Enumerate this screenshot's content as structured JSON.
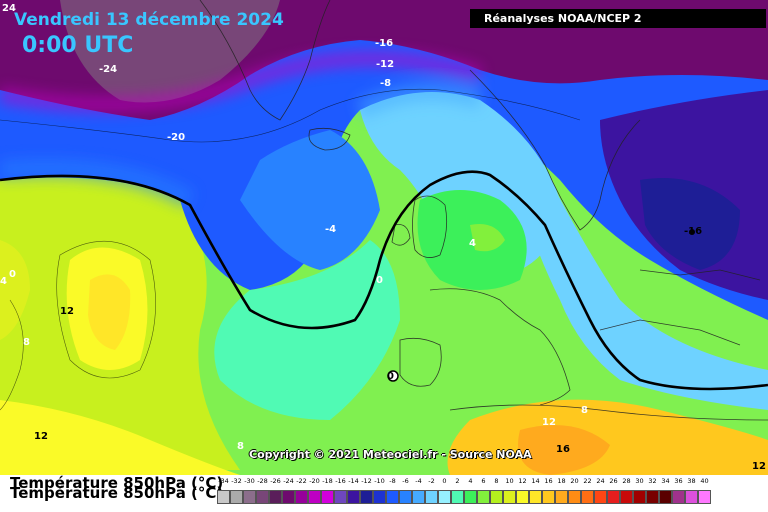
{
  "title": {
    "date": "Vendredi 13 décembre 2024",
    "time": "0:00 UTC"
  },
  "source_label": "Réanalyses NOAA/NCEP 2",
  "copyright": "Copyright © 2021 Meteociel.fr - Source NOAA",
  "variable_label": "Température 850hPa (°C)",
  "isotherm_labels": [
    {
      "text": "24",
      "color": "light"
    },
    {
      "text": "-24",
      "color": "light"
    },
    {
      "text": "-16",
      "color": "light"
    },
    {
      "text": "-12",
      "color": "light"
    },
    {
      "text": "-8",
      "color": "light"
    },
    {
      "text": "-20",
      "color": "light"
    },
    {
      "text": "-16",
      "color": "dark"
    },
    {
      "text": "-4",
      "color": "light"
    },
    {
      "text": "4",
      "color": "light"
    },
    {
      "text": "0",
      "color": "light"
    },
    {
      "text": "0",
      "color": "light"
    },
    {
      "text": "4",
      "color": "light"
    },
    {
      "text": "12",
      "color": "dark"
    },
    {
      "text": "8",
      "color": "light"
    },
    {
      "text": "12",
      "color": "dark"
    },
    {
      "text": "8",
      "color": "light"
    },
    {
      "text": "0",
      "color": "dark"
    },
    {
      "text": "8",
      "color": "light"
    },
    {
      "text": "12",
      "color": "light"
    },
    {
      "text": "16",
      "color": "dark"
    },
    {
      "text": "12",
      "color": "dark"
    }
  ],
  "legend": {
    "values": [
      "-34",
      "-32",
      "-30",
      "-28",
      "-26",
      "-24",
      "-22",
      "-20",
      "-18",
      "-16",
      "-14",
      "-12",
      "-10",
      "-8",
      "-6",
      "-4",
      "-2",
      "0",
      "2",
      "4",
      "6",
      "8",
      "10",
      "12",
      "14",
      "16",
      "18",
      "20",
      "22",
      "24",
      "26",
      "28",
      "30",
      "32",
      "34",
      "36",
      "38",
      "40"
    ],
    "colors": [
      "#c8c8c8",
      "#aaaaaa",
      "#8c6e8c",
      "#784678",
      "#5a1e5a",
      "#6e0a6e",
      "#96009b",
      "#be00c3",
      "#d200dc",
      "#6e46be",
      "#3c14a0",
      "#1e1e96",
      "#1e32d2",
      "#1e5aff",
      "#2882ff",
      "#46aaff",
      "#6ed2ff",
      "#96f0ff",
      "#50fab4",
      "#3cf05a",
      "#82f03c",
      "#b4f01e",
      "#dcf01e",
      "#fafa28",
      "#ffe628",
      "#ffc81e",
      "#ffaa1e",
      "#ff8c14",
      "#ff6e14",
      "#ff4614",
      "#e61e1e",
      "#c80a0a",
      "#a00000",
      "#780000",
      "#5a0000",
      "#a0328c",
      "#dc50dc",
      "#ff78ff"
    ]
  }
}
